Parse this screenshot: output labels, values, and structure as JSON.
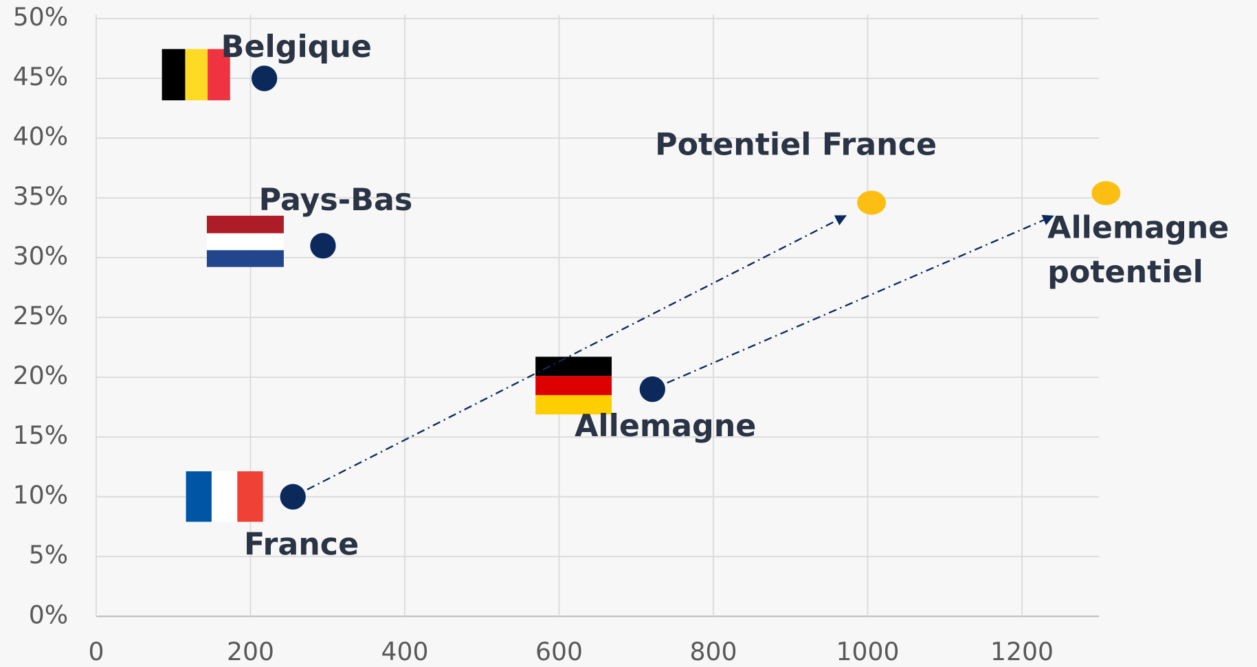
{
  "chart_data": {
    "type": "scatter",
    "xlim": [
      0,
      1300
    ],
    "xticks": [
      0,
      200,
      400,
      600,
      800,
      1000,
      1200
    ],
    "ylim": [
      0,
      50
    ],
    "yticks": [
      {
        "value": 0,
        "label": "0%"
      },
      {
        "value": 5,
        "label": "5%"
      },
      {
        "value": 10,
        "label": "10%"
      },
      {
        "value": 15,
        "label": "15%"
      },
      {
        "value": 20,
        "label": "20%"
      },
      {
        "value": 25,
        "label": "25%"
      },
      {
        "value": 30,
        "label": "30%"
      },
      {
        "value": 35,
        "label": "35%"
      },
      {
        "value": 40,
        "label": "40%"
      },
      {
        "value": 45,
        "label": "45%"
      },
      {
        "value": 50,
        "label": "50%"
      }
    ],
    "grid": true,
    "series": [
      {
        "color": "#0b2a5b",
        "x": [
          218,
          294,
          721,
          255
        ],
        "values": [
          45,
          31,
          19,
          10
        ],
        "labels": [
          "Belgique",
          "Pays-Bas",
          "Allemagne",
          "France"
        ]
      },
      {
        "color": "#fdbe14",
        "x": [
          1005,
          1309
        ],
        "values": [
          34.6,
          35.4
        ],
        "labels": [
          "Potentiel France",
          "Allemagne potentiel"
        ]
      }
    ]
  }
}
